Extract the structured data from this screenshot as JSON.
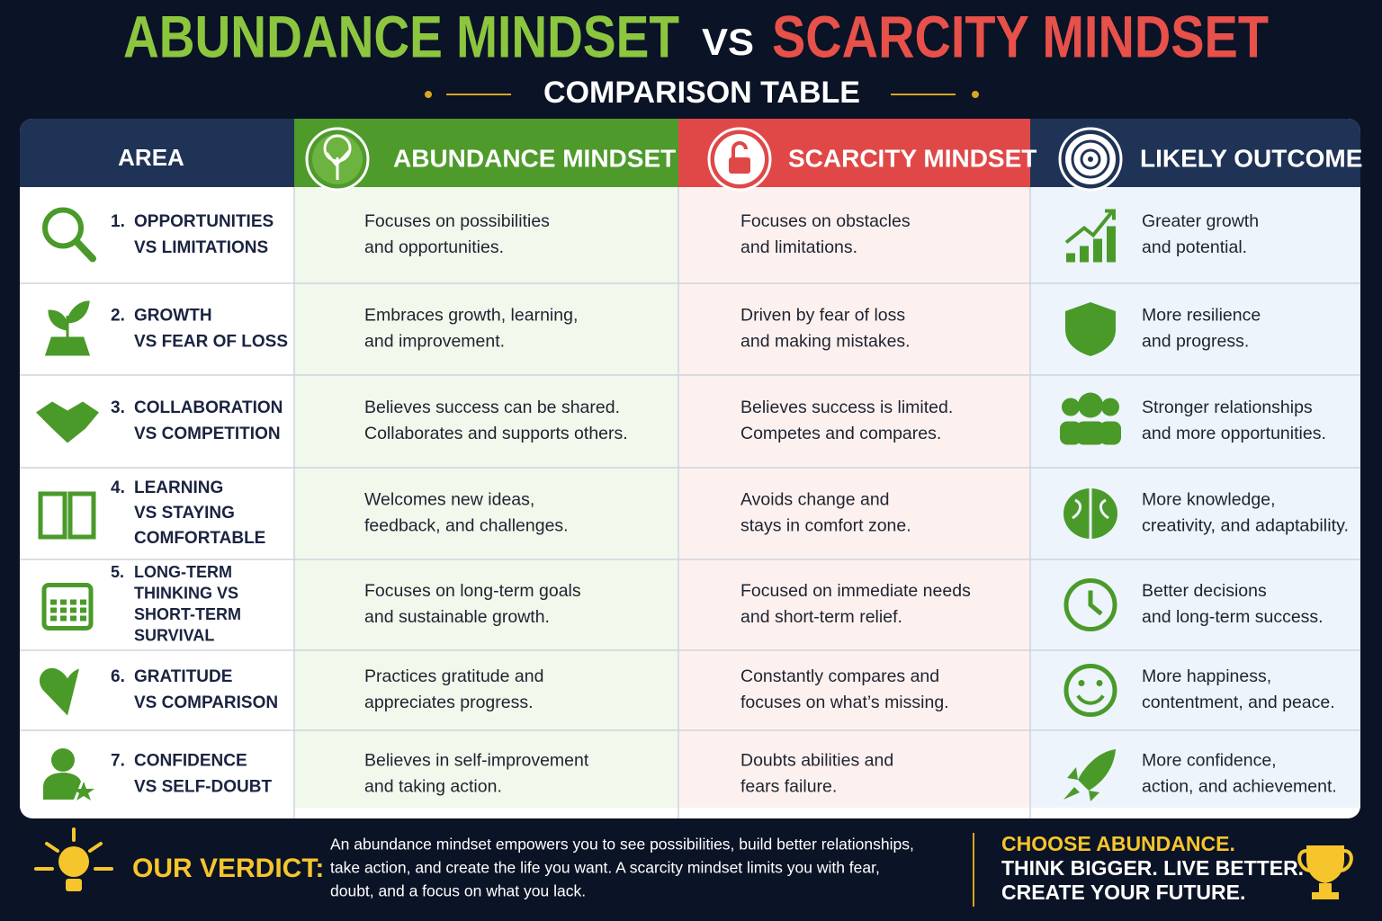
{
  "header": {
    "title_left": "ABUNDANCE MINDSET",
    "title_vs": "VS",
    "title_right": "SCARCITY MINDSET",
    "subtitle": "COMPARISON TABLE"
  },
  "table": {
    "headers": [
      "AREA",
      "ABUNDANCE MINDSET",
      "SCARCITY MINDSET",
      "LIKELY OUTCOME"
    ],
    "rows": [
      {
        "number": "1.",
        "area": [
          "OPPORTUNITIES",
          "VS LIMITATIONS"
        ],
        "abundance": [
          "Focuses on possibilities",
          "and opportunities."
        ],
        "scarcity": [
          "Focuses on obstacles",
          "and limitations."
        ],
        "outcome": [
          "Greater growth",
          "and potential."
        ]
      },
      {
        "number": "2.",
        "area": [
          "GROWTH",
          "VS FEAR OF LOSS"
        ],
        "abundance": [
          "Embraces growth, learning,",
          "and improvement."
        ],
        "scarcity": [
          "Driven by fear of loss",
          "and making mistakes."
        ],
        "outcome": [
          "More resilience",
          "and progress."
        ]
      },
      {
        "number": "3.",
        "area": [
          "COLLABORATION",
          "VS COMPETITION"
        ],
        "abundance": [
          "Believes success can be shared.",
          "Collaborates and supports others."
        ],
        "scarcity": [
          "Believes success is limited.",
          "Competes and compares."
        ],
        "outcome": [
          "Stronger relationships",
          "and more opportunities."
        ]
      },
      {
        "number": "4.",
        "area": [
          "LEARNING",
          "VS STAYING",
          "COMFORTABLE"
        ],
        "abundance": [
          "Welcomes new ideas,",
          "feedback, and challenges."
        ],
        "scarcity": [
          "Avoids change and",
          "stays in comfort zone."
        ],
        "outcome": [
          "More knowledge,",
          "creativity, and adaptability."
        ]
      },
      {
        "number": "5.",
        "area": [
          "LONG-TERM",
          "THINKING VS",
          "SHORT-TERM",
          "SURVIVAL"
        ],
        "abundance": [
          "Focuses on long-term goals",
          "and sustainable growth."
        ],
        "scarcity": [
          "Focused on immediate needs",
          "and short-term relief."
        ],
        "outcome": [
          "Better decisions",
          "and long-term success."
        ]
      },
      {
        "number": "6.",
        "area": [
          "GRATITUDE",
          "VS COMPARISON"
        ],
        "abundance": [
          "Practices gratitude and",
          "appreciates progress."
        ],
        "scarcity": [
          "Constantly compares and",
          "focuses on what’s missing."
        ],
        "outcome": [
          "More happiness,",
          "contentment, and peace."
        ]
      },
      {
        "number": "7.",
        "area": [
          "CONFIDENCE",
          "VS SELF-DOUBT"
        ],
        "abundance": [
          "Believes in self-improvement",
          "and taking action."
        ],
        "scarcity": [
          "Doubts abilities and",
          "fears failure."
        ],
        "outcome": [
          "More confidence,",
          "action, and achievement."
        ]
      }
    ]
  },
  "verdict": {
    "label": "OUR VERDICT:",
    "text": [
      "An abundance mindset empowers you to see possibilities, build better relationships,",
      "take action, and create the life you want. A scarcity mindset limits you with fear,",
      "doubt, and a focus on what you lack."
    ],
    "cta": [
      "CHOOSE ABUNDANCE.",
      "THINK BIGGER. LIVE BETTER.",
      "CREATE YOUR FUTURE."
    ]
  }
}
